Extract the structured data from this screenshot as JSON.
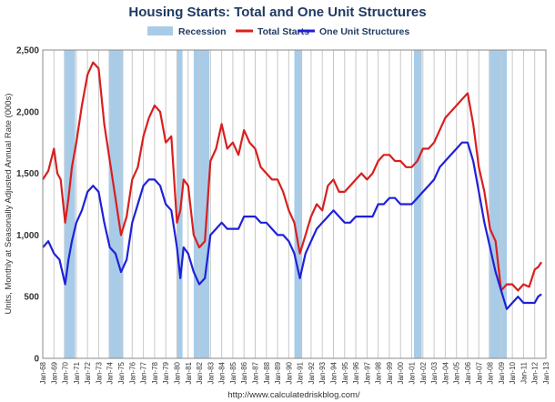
{
  "chart_data": {
    "type": "line",
    "title": "Housing Starts: Total and One Unit Structures",
    "ylabel": "Units, Monthly at Seasonally Adjusted Annual Rate (000s)",
    "ylim": [
      0,
      2500
    ],
    "yticks": [
      "0",
      "500",
      "1,000",
      "1,500",
      "2,000",
      "2,500"
    ],
    "xlim": [
      1968,
      2013
    ],
    "xticks": [
      "Jan-68",
      "Jan-69",
      "Jan-70",
      "Jan-71",
      "Jan-72",
      "Jan-73",
      "Jan-74",
      "Jan-75",
      "Jan-76",
      "Jan-77",
      "Jan-78",
      "Jan-79",
      "Jan-80",
      "Jan-81",
      "Jan-82",
      "Jan-83",
      "Jan-84",
      "Jan-85",
      "Jan-86",
      "Jan-87",
      "Jan-88",
      "Jan-89",
      "Jan-90",
      "Jan-91",
      "Jan-92",
      "Jan-93",
      "Jan-94",
      "Jan-95",
      "Jan-96",
      "Jan-97",
      "Jan-98",
      "Jan-99",
      "Jan-00",
      "Jan-01",
      "Jan-02",
      "Jan-03",
      "Jan-04",
      "Jan-05",
      "Jan-06",
      "Jan-07",
      "Jan-08",
      "Jan-09",
      "Jan-10",
      "Jan-11",
      "Jan-12",
      "Jan-13"
    ],
    "grid": "vertical",
    "legend": {
      "position": "top",
      "items": [
        "Recession",
        "Total Starts",
        "One Unit Structures"
      ]
    },
    "colors": {
      "recession": "#a8cce8",
      "total": "#d81f1f",
      "single": "#2020d8",
      "title": "#1f3b63"
    },
    "recessions": [
      [
        1969.9,
        1970.9
      ],
      [
        1973.9,
        1975.2
      ],
      [
        1980.0,
        1980.5
      ],
      [
        1981.5,
        1982.9
      ],
      [
        1990.5,
        1991.2
      ],
      [
        2001.2,
        2001.9
      ],
      [
        2007.9,
        2009.5
      ]
    ],
    "series": [
      {
        "name": "Total Starts",
        "x": [
          1968,
          1968.5,
          1969,
          1969.3,
          1969.6,
          1970,
          1970.3,
          1970.6,
          1971,
          1971.5,
          1972,
          1972.5,
          1973,
          1973.5,
          1974,
          1974.5,
          1975,
          1975.5,
          1976,
          1976.5,
          1977,
          1977.5,
          1978,
          1978.5,
          1979,
          1979.5,
          1980,
          1980.3,
          1980.6,
          1981,
          1981.5,
          1982,
          1982.5,
          1983,
          1983.5,
          1984,
          1984.5,
          1985,
          1985.5,
          1986,
          1986.5,
          1987,
          1987.5,
          1988,
          1988.5,
          1989,
          1989.5,
          1990,
          1990.5,
          1991,
          1991.5,
          1992,
          1992.5,
          1993,
          1993.5,
          1994,
          1994.5,
          1995,
          1995.5,
          1996,
          1996.5,
          1997,
          1997.5,
          1998,
          1998.5,
          1999,
          1999.5,
          2000,
          2000.5,
          2001,
          2001.5,
          2002,
          2002.5,
          2003,
          2003.5,
          2004,
          2004.5,
          2005,
          2005.5,
          2006,
          2006.5,
          2007,
          2007.5,
          2008,
          2008.5,
          2009,
          2009.5,
          2010,
          2010.5,
          2011,
          2011.5,
          2012,
          2012.3,
          2012.6
        ],
        "values": [
          1450,
          1520,
          1700,
          1500,
          1450,
          1100,
          1300,
          1550,
          1750,
          2050,
          2300,
          2400,
          2350,
          1900,
          1600,
          1300,
          1000,
          1150,
          1450,
          1550,
          1800,
          1950,
          2050,
          2000,
          1750,
          1800,
          1100,
          1200,
          1450,
          1400,
          1000,
          900,
          950,
          1600,
          1700,
          1900,
          1700,
          1750,
          1650,
          1850,
          1750,
          1700,
          1550,
          1500,
          1450,
          1450,
          1350,
          1200,
          1100,
          850,
          1000,
          1150,
          1250,
          1200,
          1400,
          1450,
          1350,
          1350,
          1400,
          1450,
          1500,
          1450,
          1500,
          1600,
          1650,
          1650,
          1600,
          1600,
          1550,
          1550,
          1600,
          1700,
          1700,
          1750,
          1850,
          1950,
          2000,
          2050,
          2100,
          2150,
          1900,
          1550,
          1350,
          1050,
          950,
          550,
          600,
          600,
          550,
          600,
          580,
          720,
          740,
          780
        ]
      },
      {
        "name": "One Unit Structures",
        "x": [
          1968,
          1968.5,
          1969,
          1969.5,
          1970,
          1970.3,
          1970.6,
          1971,
          1971.5,
          1972,
          1972.5,
          1973,
          1973.5,
          1974,
          1974.5,
          1975,
          1975.5,
          1976,
          1976.5,
          1977,
          1977.5,
          1978,
          1978.5,
          1979,
          1979.5,
          1980,
          1980.3,
          1980.6,
          1981,
          1981.5,
          1982,
          1982.5,
          1983,
          1983.5,
          1984,
          1984.5,
          1985,
          1985.5,
          1986,
          1986.5,
          1987,
          1987.5,
          1988,
          1988.5,
          1989,
          1989.5,
          1990,
          1990.5,
          1991,
          1991.5,
          1992,
          1992.5,
          1993,
          1993.5,
          1994,
          1994.5,
          1995,
          1995.5,
          1996,
          1996.5,
          1997,
          1997.5,
          1998,
          1998.5,
          1999,
          1999.5,
          2000,
          2000.5,
          2001,
          2001.5,
          2002,
          2002.5,
          2003,
          2003.5,
          2004,
          2004.5,
          2005,
          2005.5,
          2006,
          2006.5,
          2007,
          2007.5,
          2008,
          2008.5,
          2009,
          2009.5,
          2010,
          2010.5,
          2011,
          2011.5,
          2012,
          2012.3,
          2012.6
        ],
        "values": [
          900,
          950,
          850,
          800,
          600,
          800,
          950,
          1100,
          1200,
          1350,
          1400,
          1350,
          1100,
          900,
          850,
          700,
          800,
          1100,
          1250,
          1400,
          1450,
          1450,
          1400,
          1250,
          1200,
          900,
          650,
          900,
          850,
          700,
          600,
          650,
          1000,
          1050,
          1100,
          1050,
          1050,
          1050,
          1150,
          1150,
          1150,
          1100,
          1100,
          1050,
          1000,
          1000,
          950,
          850,
          650,
          850,
          950,
          1050,
          1100,
          1150,
          1200,
          1150,
          1100,
          1100,
          1150,
          1150,
          1150,
          1150,
          1250,
          1250,
          1300,
          1300,
          1250,
          1250,
          1250,
          1300,
          1350,
          1400,
          1450,
          1550,
          1600,
          1650,
          1700,
          1750,
          1750,
          1600,
          1350,
          1100,
          900,
          700,
          550,
          400,
          450,
          500,
          450,
          450,
          450,
          500,
          520
        ]
      }
    ]
  },
  "footer": "http://www.calculatedriskblog.com/"
}
